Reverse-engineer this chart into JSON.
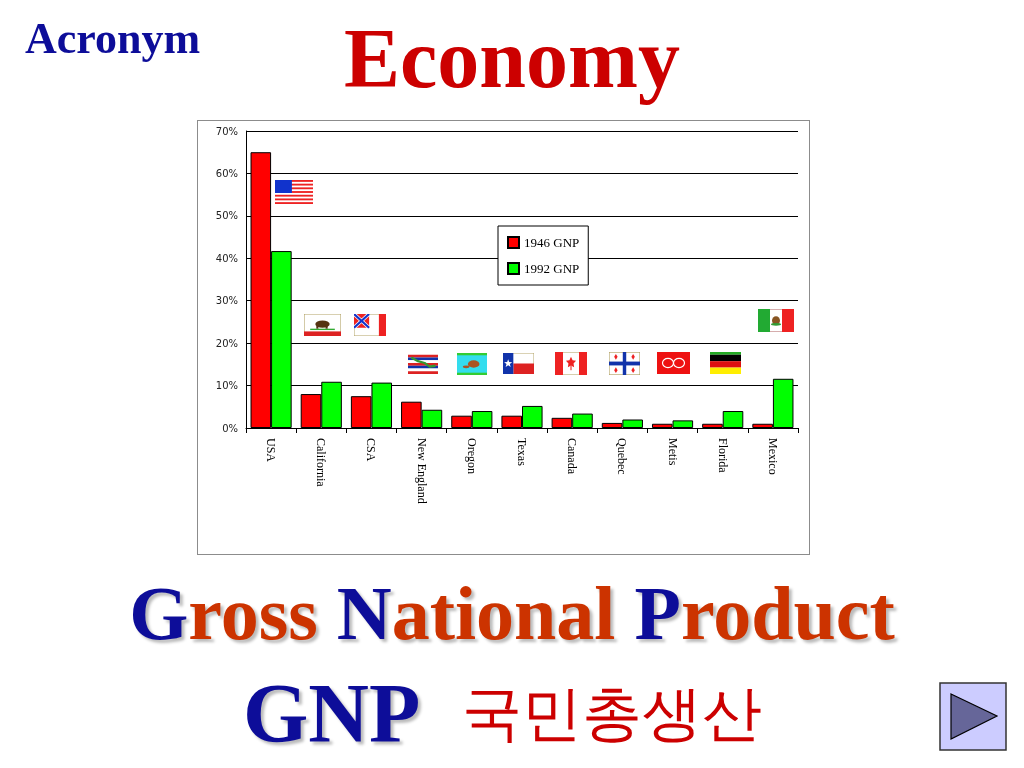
{
  "chart_data": {
    "type": "bar",
    "title": "Economy",
    "subtitle": "Gross National Product",
    "annotations": [
      "Acronym",
      "GNP",
      "국민총생산"
    ],
    "categories": [
      "USA",
      "California",
      "CSA",
      "New England",
      "Oregon",
      "Texas",
      "Canada",
      "Quebec",
      "Metis",
      "Florida",
      "Mexico"
    ],
    "series": [
      {
        "name": "1946 GNP",
        "color": "#ff0000",
        "values": [
          65,
          8,
          7.5,
          6.2,
          2.9,
          2.9,
          2.4,
          1.2,
          1,
          1,
          1
        ]
      },
      {
        "name": "1992 GNP",
        "color": "#00ff00",
        "values": [
          41.7,
          10.9,
          10.7,
          4.3,
          4,
          5.2,
          3.4,
          2,
          1.8,
          4,
          11.6
        ]
      }
    ],
    "ylim": [
      0,
      70
    ],
    "yticks": [
      {
        "value": 0,
        "label": "0%"
      },
      {
        "value": 10,
        "label": "10%"
      },
      {
        "value": 20,
        "label": "20%"
      },
      {
        "value": 30,
        "label": "30%"
      },
      {
        "value": 40,
        "label": "40%"
      },
      {
        "value": 50,
        "label": "50%"
      },
      {
        "value": 60,
        "label": "60%"
      },
      {
        "value": 70,
        "label": "70%"
      }
    ],
    "grid": "y",
    "legend": "top"
  }
}
